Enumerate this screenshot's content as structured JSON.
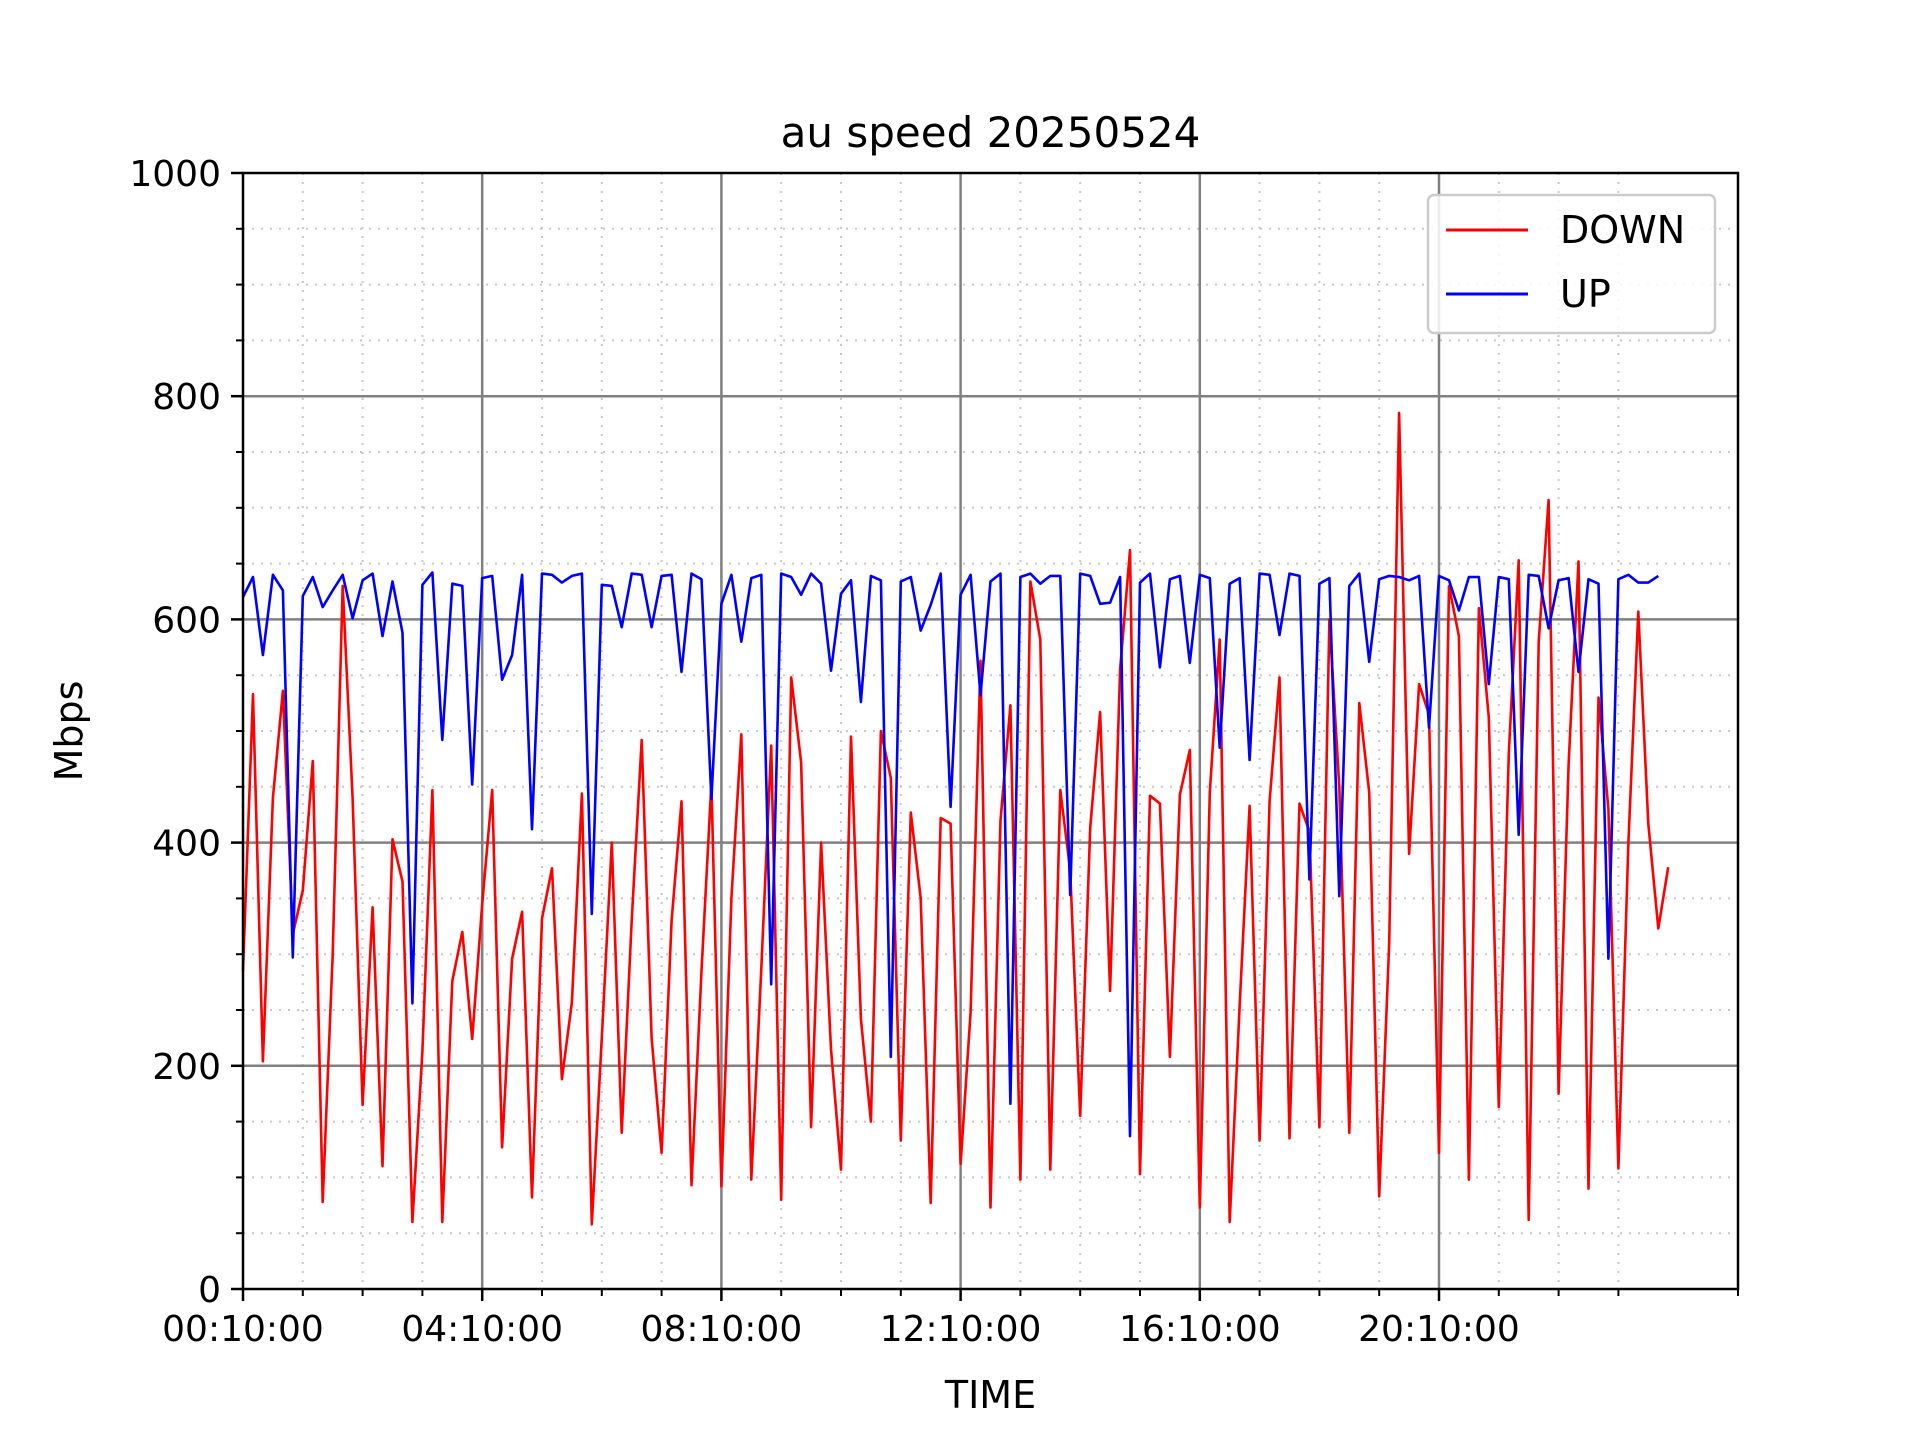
{
  "chart_data": {
    "type": "line",
    "title": "au speed 20250524",
    "xlabel": "TIME",
    "ylabel": "Mbps",
    "ylim": [
      0,
      1000
    ],
    "y_ticks": [
      "0",
      "200",
      "400",
      "600",
      "800",
      "1000"
    ],
    "x_ticks": [
      "00:10:00",
      "04:10:00",
      "08:10:00",
      "12:10:00",
      "16:10:00",
      "20:10:00"
    ],
    "x_start": "00:10:00",
    "x_interval_minutes": 10,
    "grid": true,
    "legend_position": "top-right",
    "series": [
      {
        "name": "DOWN",
        "color": "#ff0000",
        "values": [
          285,
          533,
          204,
          440,
          536,
          318,
          357,
          473,
          78,
          300,
          630,
          440,
          165,
          342,
          110,
          403,
          365,
          60,
          213,
          447,
          60,
          276,
          320,
          224,
          345,
          447,
          127,
          296,
          338,
          82,
          332,
          377,
          188,
          257,
          444,
          58,
          225,
          400,
          140,
          330,
          492,
          225,
          122,
          330,
          437,
          93,
          285,
          453,
          92,
          350,
          497,
          98,
          287,
          487,
          80,
          548,
          472,
          145,
          400,
          215,
          107,
          495,
          242,
          150,
          500,
          458,
          133,
          427,
          350,
          77,
          422,
          417,
          112,
          248,
          563,
          73,
          420,
          523,
          98,
          634,
          582,
          107,
          447,
          375,
          155,
          413,
          517,
          267,
          555,
          662,
          103,
          442,
          435,
          208,
          443,
          483,
          73,
          445,
          582,
          60,
          255,
          433,
          133,
          437,
          548,
          135,
          435,
          410,
          145,
          600,
          450,
          140,
          525,
          445,
          83,
          310,
          785,
          390,
          542,
          515,
          122,
          630,
          585,
          98,
          610,
          512,
          163,
          480,
          653,
          62,
          580,
          707,
          175,
          470,
          652,
          90,
          530,
          430,
          108,
          400,
          607,
          417,
          323,
          378
        ]
      },
      {
        "name": "UP",
        "color": "#0000ff",
        "values": [
          620,
          638,
          568,
          640,
          626,
          297,
          621,
          638,
          611,
          626,
          640,
          601,
          635,
          641,
          585,
          634,
          588,
          256,
          631,
          642,
          492,
          632,
          630,
          452,
          637,
          639,
          546,
          568,
          640,
          412,
          641,
          640,
          633,
          639,
          641,
          336,
          631,
          630,
          593,
          641,
          640,
          593,
          639,
          640,
          553,
          641,
          636,
          439,
          614,
          640,
          580,
          637,
          640,
          273,
          641,
          638,
          622,
          641,
          632,
          554,
          623,
          635,
          526,
          639,
          635,
          208,
          634,
          638,
          590,
          613,
          641,
          432,
          622,
          640,
          532,
          634,
          641,
          166,
          638,
          641,
          632,
          639,
          639,
          353,
          641,
          639,
          614,
          615,
          638,
          137,
          633,
          641,
          557,
          636,
          639,
          561,
          640,
          637,
          485,
          632,
          637,
          474,
          641,
          640,
          586,
          641,
          639,
          367,
          632,
          637,
          352,
          630,
          641,
          562,
          636,
          639,
          638,
          635,
          639,
          503,
          639,
          635,
          608,
          638,
          638,
          542,
          638,
          636,
          407,
          640,
          639,
          592,
          635,
          637,
          553,
          636,
          632,
          296,
          636,
          640,
          633,
          633,
          639
        ]
      }
    ]
  }
}
